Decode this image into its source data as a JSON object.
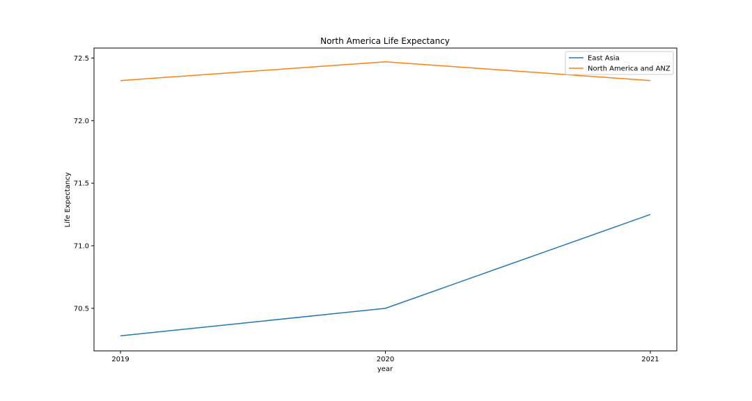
{
  "chart_data": {
    "type": "line",
    "title": "North America Life Expectancy",
    "xlabel": "year",
    "ylabel": "Life Expectancy",
    "x": [
      2019,
      2020,
      2021
    ],
    "x_tick_labels": [
      "2019",
      "2020",
      "2021"
    ],
    "y_ticks": [
      70.5,
      71.0,
      71.5,
      72.0,
      72.5
    ],
    "y_tick_labels": [
      "70.5",
      "71.0",
      "71.5",
      "72.0",
      "72.5"
    ],
    "xlim": [
      2018.9,
      2021.1
    ],
    "ylim": [
      70.16,
      72.58
    ],
    "grid": false,
    "legend_position": "top-right",
    "series": [
      {
        "name": "East Asia",
        "color": "#1f77b4",
        "values": [
          70.28,
          70.5,
          71.25
        ]
      },
      {
        "name": "North America and ANZ",
        "color": "#ff7f0e",
        "values": [
          72.32,
          72.47,
          72.32
        ]
      }
    ]
  }
}
